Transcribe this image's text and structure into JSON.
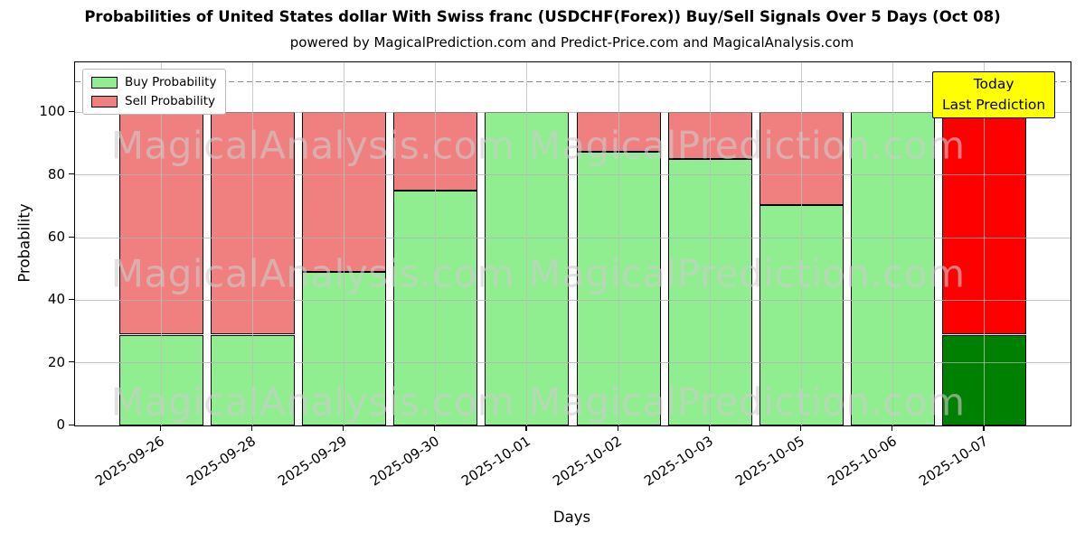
{
  "chart_data": {
    "type": "bar",
    "stacked": true,
    "title": "Probabilities of United States dollar With Swiss franc (USDCHF(Forex)) Buy/Sell Signals Over 5 Days (Oct 08)",
    "subtitle": "powered by MagicalPrediction.com and Predict-Price.com and MagicalAnalysis.com",
    "xlabel": "Days",
    "ylabel": "Probability",
    "categories": [
      "2025-09-26",
      "2025-09-28",
      "2025-09-29",
      "2025-09-30",
      "2025-10-01",
      "2025-10-02",
      "2025-10-03",
      "2025-10-05",
      "2025-10-06",
      "2025-10-07"
    ],
    "series": [
      {
        "name": "Buy Probability",
        "color": "#90EE90",
        "today_color": "#008000",
        "values": [
          29,
          29,
          49,
          75,
          100,
          87.5,
          85,
          70.5,
          100,
          29
        ]
      },
      {
        "name": "Sell Probability",
        "color": "#F08080",
        "today_color": "#FF0000",
        "values": [
          71,
          71,
          51,
          25,
          0,
          12.5,
          15,
          29.5,
          0,
          71
        ]
      }
    ],
    "bar_edge_color": "#000000",
    "ylim": [
      0,
      116
    ],
    "xlim": [
      -0.94,
      9.94
    ],
    "yticks": [
      0,
      20,
      40,
      60,
      80,
      100
    ],
    "grid": true,
    "legend_position": "upper left",
    "dashed_line_y": 110,
    "dashed_line_color": "#8a8a8a",
    "annotation": {
      "lines": [
        "Today",
        "Last Prediction"
      ],
      "bg_color": "#FFFF00",
      "border_color": "#000000"
    },
    "watermark": {
      "texts": [
        "MagicalAnalysis.com",
        "MagicalPrediction.com"
      ],
      "color": "rgba(205,205,205,0.6)"
    }
  }
}
